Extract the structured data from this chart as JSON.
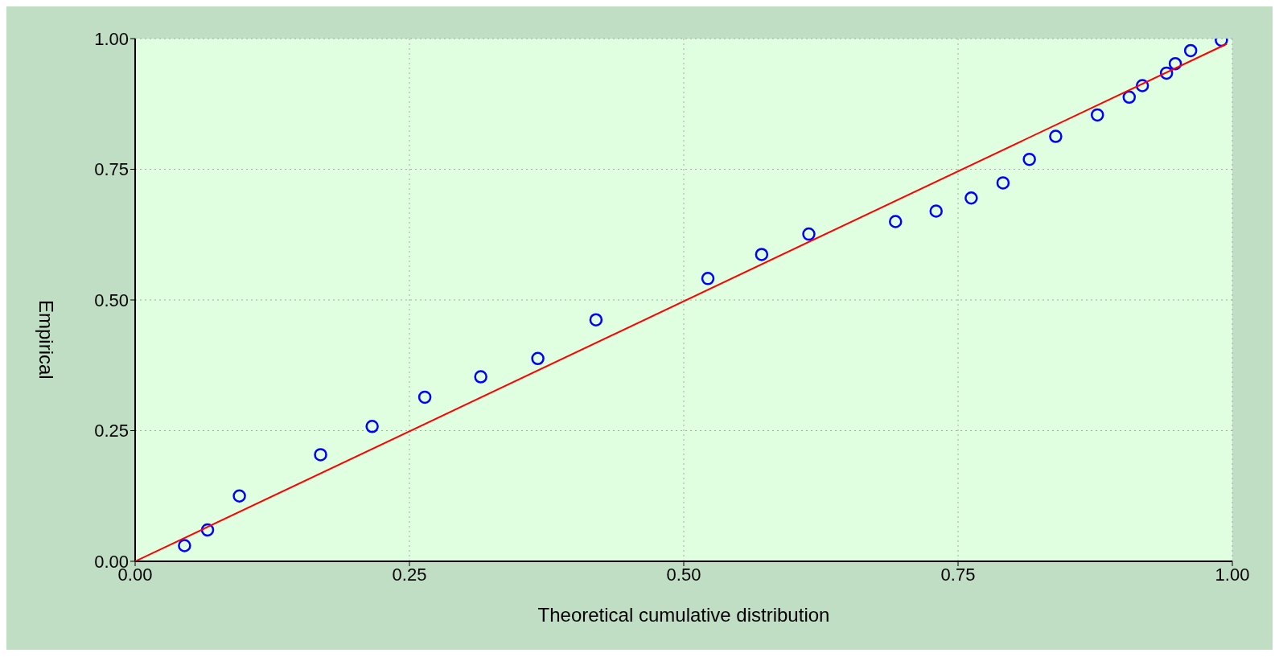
{
  "chart_data": {
    "type": "scatter",
    "xlabel": "Theoretical cumulative distribution",
    "ylabel": "Empirical",
    "xlim": [
      0,
      1
    ],
    "ylim": [
      0,
      1
    ],
    "xticks": [
      {
        "value": 0,
        "label": "0.00"
      },
      {
        "value": 0.25,
        "label": "0.25"
      },
      {
        "value": 0.5,
        "label": "0.50"
      },
      {
        "value": 0.75,
        "label": "0.75"
      },
      {
        "value": 1,
        "label": "1.00"
      }
    ],
    "yticks": [
      {
        "value": 0,
        "label": "0.00"
      },
      {
        "value": 0.25,
        "label": "0.25"
      },
      {
        "value": 0.5,
        "label": "0.50"
      },
      {
        "value": 0.75,
        "label": "0.75"
      },
      {
        "value": 1,
        "label": "1.00"
      }
    ],
    "grid": true,
    "legend": false,
    "series": [
      {
        "marker": "circle",
        "color": "#0000ff",
        "x": [
          0.045,
          0.066,
          0.095,
          0.169,
          0.216,
          0.264,
          0.315,
          0.367,
          0.42,
          0.522,
          0.571,
          0.614,
          0.693,
          0.73,
          0.762,
          0.791,
          0.815,
          0.839,
          0.877,
          0.906,
          0.918,
          0.94,
          0.948,
          0.962,
          0.99
        ],
        "values": [
          0.03,
          0.06,
          0.125,
          0.204,
          0.258,
          0.314,
          0.353,
          0.388,
          0.462,
          0.541,
          0.587,
          0.626,
          0.65,
          0.67,
          0.695,
          0.724,
          0.769,
          0.813,
          0.854,
          0.888,
          0.91,
          0.934,
          0.952,
          0.977,
          0.997
        ]
      },
      {
        "type": "line",
        "marker": "none",
        "color": "#ff0000",
        "x": [
          0,
          0.995
        ],
        "values": [
          0,
          0.99
        ]
      }
    ]
  }
}
